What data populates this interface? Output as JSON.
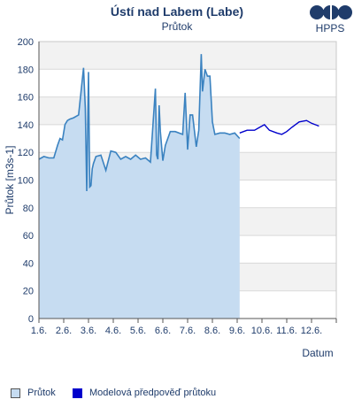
{
  "header": {
    "title": "Ústí nad Labem (Labe)",
    "subtitle": "Průtok",
    "logo_text": "HPPS"
  },
  "colors": {
    "observed_fill": "#c6dcf1",
    "observed_line": "#3a82c0",
    "forecast_line": "#0000cc",
    "band_gray": "#f2f2f2",
    "grid": "#d9d9d9",
    "text": "#1f3c6b"
  },
  "legend": {
    "observed": "Průtok",
    "forecast": "Modelová předpověď průtoku"
  },
  "chart_data": {
    "type": "area",
    "title": "Průtok",
    "xlabel": "Datum",
    "ylabel": "Průtok [m3s-1]",
    "ylim": [
      0,
      200
    ],
    "xlim": [
      1,
      13
    ],
    "grid": true,
    "legend_position": "bottom",
    "x_ticks": [
      1,
      2,
      3,
      4,
      5,
      6,
      7,
      8,
      9,
      10,
      11,
      12,
      13
    ],
    "x_tick_labels": [
      "1.6.",
      "2.6.",
      "3.6.",
      "4.6.",
      "5.6.",
      "6.6.",
      "7.6.",
      "8.6.",
      "9.6.",
      "10.6.",
      "11.6.",
      "12.6."
    ],
    "y_ticks": [
      0,
      20,
      40,
      60,
      80,
      100,
      120,
      140,
      160,
      180,
      200
    ],
    "series": [
      {
        "name": "Průtok",
        "x": [
          1.0,
          1.2,
          1.4,
          1.6,
          1.75,
          1.85,
          1.95,
          2.05,
          2.15,
          2.25,
          2.4,
          2.6,
          2.8,
          2.87,
          2.93,
          3.0,
          3.05,
          3.1,
          3.15,
          3.2,
          3.3,
          3.5,
          3.7,
          3.9,
          4.1,
          4.3,
          4.5,
          4.7,
          4.9,
          5.1,
          5.3,
          5.5,
          5.7,
          5.75,
          5.8,
          5.85,
          5.9,
          6.0,
          6.1,
          6.3,
          6.5,
          6.8,
          6.9,
          7.0,
          7.1,
          7.2,
          7.35,
          7.45,
          7.55,
          7.6,
          7.7,
          7.8,
          7.9,
          8.0,
          8.1,
          8.3,
          8.5,
          8.7,
          8.9,
          9.1
        ],
        "y": [
          115,
          117,
          116,
          116,
          125,
          130,
          129,
          140,
          143,
          144,
          145,
          147,
          181,
          152,
          92,
          178,
          95,
          96,
          108,
          112,
          117,
          118,
          107,
          121,
          120,
          115,
          117,
          115,
          118,
          115,
          116,
          113,
          166,
          118,
          115,
          154,
          135,
          114,
          125,
          135,
          135,
          133,
          163,
          122,
          147,
          147,
          124,
          136,
          191,
          164,
          180,
          175,
          175,
          142,
          133,
          134,
          134,
          133,
          134,
          130
        ]
      },
      {
        "name": "Modelová předpověď průtoku",
        "x": [
          9.1,
          9.4,
          9.7,
          9.9,
          10.1,
          10.3,
          10.6,
          10.8,
          11.0,
          11.2,
          11.5,
          11.8,
          12.0,
          12.3
        ],
        "y": [
          134,
          136,
          136,
          138,
          140,
          136,
          134,
          133,
          135,
          138,
          142,
          143,
          141,
          139
        ]
      }
    ]
  }
}
